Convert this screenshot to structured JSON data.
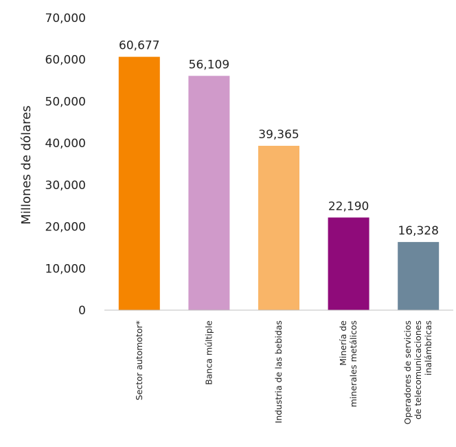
{
  "chart_data": {
    "type": "bar",
    "title": "",
    "ylabel": "Millones de dólares",
    "xlabel": "",
    "ylim": [
      0,
      70000
    ],
    "yticks": [
      0,
      10000,
      20000,
      30000,
      40000,
      50000,
      60000,
      70000
    ],
    "ytick_labels": [
      "0",
      "10,000",
      "20,000",
      "30,000",
      "40,000",
      "50,000",
      "60,000",
      "70,000"
    ],
    "grid": false,
    "categories": [
      [
        "Sector automotor*"
      ],
      [
        "Banca múltiple"
      ],
      [
        "Industria de las bebidas"
      ],
      [
        "Minería de",
        "minerales metálicos"
      ],
      [
        "Operadores de servicios",
        "de telecomunicaciones",
        "inalámbricas"
      ]
    ],
    "values": [
      60677,
      56109,
      39365,
      22190,
      16328
    ],
    "value_labels": [
      "60,677",
      "56,109",
      "39,365",
      "22,190",
      "16,328"
    ],
    "colors": [
      "#F58500",
      "#D09ACA",
      "#F9B568",
      "#8F0B7A",
      "#6C879B"
    ]
  }
}
